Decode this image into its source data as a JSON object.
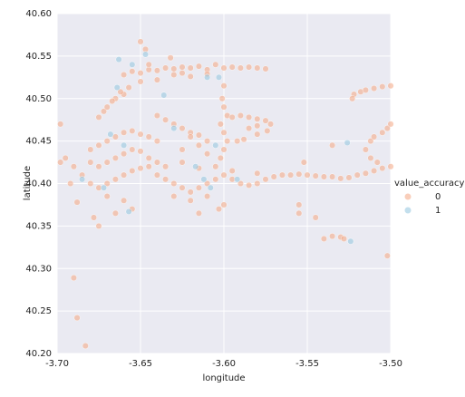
{
  "chart_data": {
    "type": "scatter",
    "x_label": "longitude",
    "y_label": "latitude",
    "legend_title": "value_accuracy",
    "legend": "right",
    "xlim": [
      -3.7,
      -3.5
    ],
    "ylim": [
      40.2,
      40.6
    ],
    "xticks": [
      {
        "value": -3.7,
        "label": "-3.70"
      },
      -3.65,
      {
        "value": -3.6,
        "label": "-3.60"
      },
      -3.55,
      {
        "value": -3.5,
        "label": "-3.50"
      }
    ],
    "yticks": [
      {
        "value": 40.2,
        "label": "40.20"
      },
      40.25,
      {
        "value": 40.3,
        "label": "40.30"
      },
      40.35,
      {
        "value": 40.4,
        "label": "40.40"
      },
      40.45,
      {
        "value": 40.5,
        "label": "40.50"
      },
      40.55,
      {
        "value": 40.6,
        "label": "40.60"
      }
    ],
    "grid": true,
    "series": [
      {
        "name": "0",
        "color": "#f4a582",
        "x": [
          -3.66,
          -3.655,
          -3.65,
          -3.645,
          -3.64,
          -3.635,
          -3.63,
          -3.625,
          -3.62,
          -3.615,
          -3.61,
          -3.605,
          -3.6,
          -3.595,
          -3.59,
          -3.585,
          -3.58,
          -3.575,
          -3.65,
          -3.64,
          -3.63,
          -3.62,
          -3.61,
          -3.645,
          -3.625,
          -3.65,
          -3.647,
          -3.632,
          -3.657,
          -3.66,
          -3.665,
          -3.675,
          -3.672,
          -3.67,
          -3.667,
          -3.662,
          -3.6,
          -3.601,
          -3.6,
          -3.598,
          -3.602,
          -3.6,
          -3.598,
          -3.6,
          -3.602,
          -3.64,
          -3.635,
          -3.63,
          -3.625,
          -3.62,
          -3.615,
          -3.61,
          -3.62,
          -3.595,
          -3.59,
          -3.585,
          -3.58,
          -3.575,
          -3.572,
          -3.574,
          -3.58,
          -3.588,
          -3.592,
          -3.585,
          -3.58,
          -3.68,
          -3.675,
          -3.67,
          -3.665,
          -3.66,
          -3.655,
          -3.65,
          -3.645,
          -3.64,
          -3.68,
          -3.675,
          -3.67,
          -3.665,
          -3.66,
          -3.655,
          -3.65,
          -3.645,
          -3.64,
          -3.685,
          -3.68,
          -3.675,
          -3.67,
          -3.665,
          -3.66,
          -3.655,
          -3.65,
          -3.645,
          -3.67,
          -3.66,
          -3.655,
          -3.665,
          -3.69,
          -3.695,
          -3.698,
          -3.692,
          -3.688,
          -3.678,
          -3.675,
          -3.64,
          -3.635,
          -3.63,
          -3.625,
          -3.62,
          -3.615,
          -3.61,
          -3.605,
          -3.6,
          -3.595,
          -3.59,
          -3.585,
          -3.58,
          -3.635,
          -3.625,
          -3.615,
          -3.605,
          -3.595,
          -3.63,
          -3.62,
          -3.61,
          -3.6,
          -3.615,
          -3.603,
          -3.625,
          -3.615,
          -3.61,
          -3.575,
          -3.57,
          -3.565,
          -3.56,
          -3.555,
          -3.55,
          -3.545,
          -3.54,
          -3.535,
          -3.53,
          -3.525,
          -3.52,
          -3.515,
          -3.51,
          -3.505,
          -3.5,
          -3.552,
          -3.58,
          -3.522,
          -3.518,
          -3.515,
          -3.51,
          -3.505,
          -3.5,
          -3.523,
          -3.515,
          -3.512,
          -3.51,
          -3.505,
          -3.502,
          -3.5,
          -3.512,
          -3.508,
          -3.535,
          -3.54,
          -3.535,
          -3.53,
          -3.528,
          -3.545,
          -3.555,
          -3.555,
          -3.502,
          -3.698,
          -3.69,
          -3.688,
          -3.683
        ],
        "values": [
          40.528,
          40.532,
          40.53,
          40.534,
          40.533,
          40.536,
          40.535,
          40.537,
          40.536,
          40.538,
          40.534,
          40.54,
          40.536,
          40.537,
          40.536,
          40.537,
          40.536,
          40.535,
          40.52,
          40.522,
          40.528,
          40.526,
          40.529,
          40.54,
          40.53,
          40.567,
          40.558,
          40.548,
          40.513,
          40.505,
          40.5,
          40.478,
          40.485,
          40.49,
          40.497,
          40.508,
          40.515,
          40.5,
          40.49,
          40.48,
          40.47,
          40.46,
          40.45,
          40.44,
          40.43,
          40.48,
          40.475,
          40.47,
          40.465,
          40.46,
          40.457,
          40.45,
          40.455,
          40.478,
          40.48,
          40.478,
          40.476,
          40.474,
          40.47,
          40.462,
          40.458,
          40.452,
          40.45,
          40.465,
          40.468,
          40.44,
          40.445,
          40.45,
          40.455,
          40.46,
          40.462,
          40.458,
          40.455,
          40.45,
          40.425,
          40.42,
          40.425,
          40.43,
          40.435,
          40.44,
          40.438,
          40.43,
          40.425,
          40.41,
          40.4,
          40.395,
          40.4,
          40.405,
          40.41,
          40.415,
          40.418,
          40.42,
          40.385,
          40.38,
          40.37,
          40.365,
          40.42,
          40.43,
          40.425,
          40.4,
          40.378,
          40.36,
          40.35,
          40.41,
          40.405,
          40.4,
          40.395,
          40.39,
          40.395,
          40.4,
          40.405,
          40.41,
          40.405,
          40.4,
          40.398,
          40.4,
          40.42,
          40.425,
          40.418,
          40.42,
          40.415,
          40.385,
          40.38,
          40.385,
          40.375,
          40.365,
          40.37,
          40.44,
          40.445,
          40.435,
          40.405,
          40.408,
          40.41,
          40.41,
          40.411,
          40.41,
          40.409,
          40.408,
          40.408,
          40.406,
          40.407,
          40.41,
          40.412,
          40.415,
          40.418,
          40.42,
          40.425,
          40.412,
          40.505,
          40.508,
          40.51,
          40.512,
          40.514,
          40.515,
          40.5,
          40.44,
          40.45,
          40.455,
          40.46,
          40.465,
          40.47,
          40.43,
          40.425,
          40.445,
          40.335,
          40.338,
          40.337,
          40.335,
          40.36,
          40.365,
          40.375,
          40.315,
          40.47,
          40.289,
          40.242,
          40.209
        ]
      },
      {
        "name": "1",
        "color": "#92c5de",
        "x": [
          -3.647,
          -3.663,
          -3.655,
          -3.636,
          -3.603,
          -3.61,
          -3.526,
          -3.524,
          -3.685,
          -3.668,
          -3.66,
          -3.657,
          -3.672,
          -3.608,
          -3.612,
          -3.617,
          -3.592,
          -3.664,
          -3.63,
          -3.605
        ],
        "values": [
          40.552,
          40.546,
          40.54,
          40.504,
          40.525,
          40.525,
          40.448,
          40.332,
          40.405,
          40.458,
          40.445,
          40.367,
          40.395,
          40.395,
          40.405,
          40.42,
          40.405,
          40.513,
          40.465,
          40.445
        ]
      }
    ]
  }
}
